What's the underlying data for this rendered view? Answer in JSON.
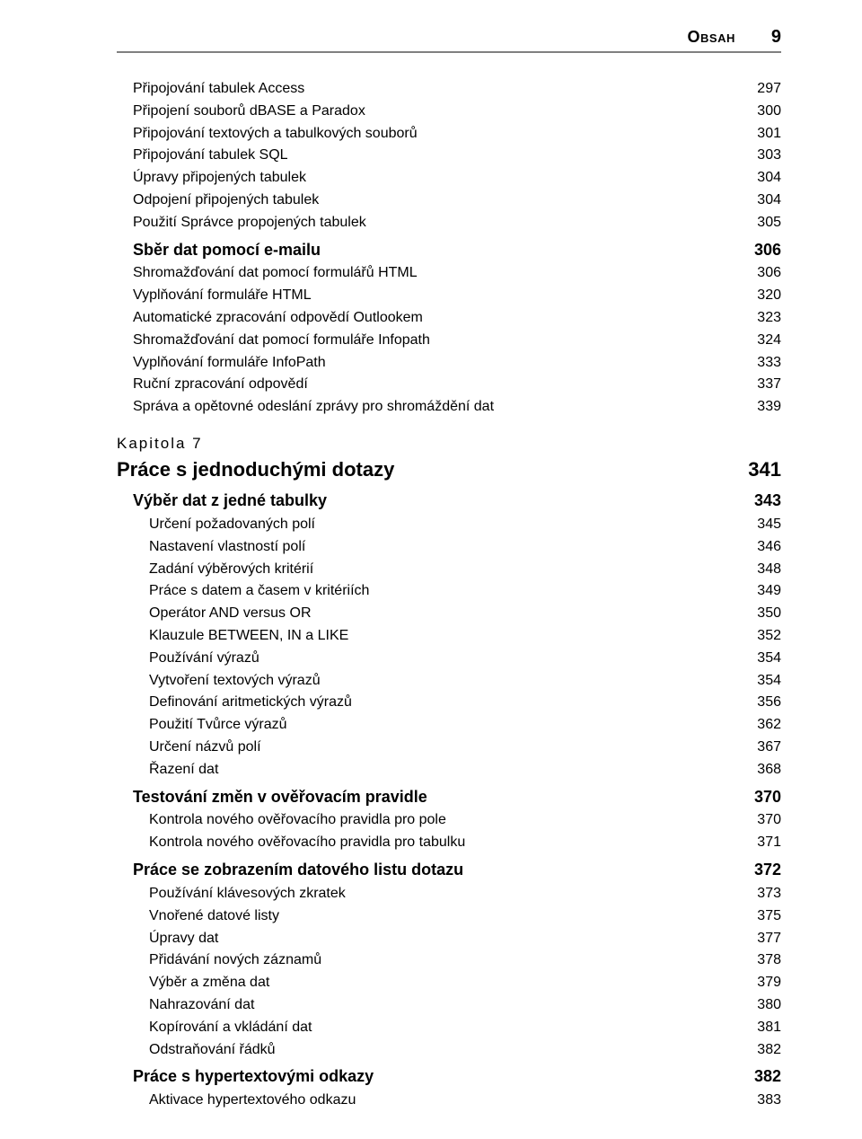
{
  "header": {
    "title": "Obsah",
    "page": "9"
  },
  "block1": {
    "items": [
      {
        "label": "Připojování tabulek Access",
        "page": "297"
      },
      {
        "label": "Připojení souborů dBASE a Paradox",
        "page": "300"
      },
      {
        "label": "Připojování textových a tabulkových souborů",
        "page": "301"
      },
      {
        "label": "Připojování tabulek SQL",
        "page": "303"
      },
      {
        "label": "Úpravy připojených tabulek",
        "page": "304"
      },
      {
        "label": "Odpojení připojených tabulek",
        "page": "304"
      },
      {
        "label": "Použití Správce propojených tabulek",
        "page": "305"
      }
    ],
    "section": {
      "label": "Sběr dat pomocí e-mailu",
      "page": "306"
    },
    "subitems": [
      {
        "label": "Shromažďování dat pomocí formulářů HTML",
        "page": "306"
      },
      {
        "label": "Vyplňování formuláře HTML",
        "page": "320"
      },
      {
        "label": "Automatické zpracování odpovědí Outlookem",
        "page": "323"
      },
      {
        "label": "Shromažďování dat pomocí formuláře Infopath",
        "page": "324"
      },
      {
        "label": "Vyplňování formuláře InfoPath",
        "page": "333"
      },
      {
        "label": "Ruční zpracování odpovědí",
        "page": "337"
      },
      {
        "label": "Správa a opětovné odeslání zprávy pro shromáždění dat",
        "page": "339"
      }
    ]
  },
  "chapter7": {
    "kapitola": "Kapitola 7",
    "title": {
      "label": "Práce s jednoduchými dotazy",
      "page": "341"
    },
    "sections": [
      {
        "heading": {
          "label": "Výběr dat z jedné tabulky",
          "page": "343"
        },
        "items": [
          {
            "label": "Určení požadovaných polí",
            "page": "345"
          },
          {
            "label": "Nastavení vlastností polí",
            "page": "346"
          },
          {
            "label": "Zadání výběrových kritérií",
            "page": "348"
          },
          {
            "label": "Práce s datem a časem v kritériích",
            "page": "349"
          },
          {
            "label": "Operátor AND versus OR",
            "page": "350"
          },
          {
            "label": "Klauzule BETWEEN, IN a LIKE",
            "page": "352"
          },
          {
            "label": "Používání výrazů",
            "page": "354"
          },
          {
            "label": "Vytvoření textových výrazů",
            "page": "354"
          },
          {
            "label": "Definování aritmetických výrazů",
            "page": "356"
          },
          {
            "label": "Použití Tvůrce výrazů",
            "page": "362"
          },
          {
            "label": "Určení názvů polí",
            "page": "367"
          },
          {
            "label": "Řazení dat",
            "page": "368"
          }
        ]
      },
      {
        "heading": {
          "label": "Testování změn v ověřovacím pravidle",
          "page": "370"
        },
        "items": [
          {
            "label": "Kontrola nového ověřovacího pravidla pro pole",
            "page": "370"
          },
          {
            "label": "Kontrola nového ověřovacího pravidla pro tabulku",
            "page": "371"
          }
        ]
      },
      {
        "heading": {
          "label": "Práce se zobrazením datového listu dotazu",
          "page": "372"
        },
        "items": [
          {
            "label": "Používání klávesových zkratek",
            "page": "373"
          },
          {
            "label": "Vnořené datové listy",
            "page": "375"
          },
          {
            "label": "Úpravy dat",
            "page": "377"
          },
          {
            "label": "Přidávání nových záznamů",
            "page": "378"
          },
          {
            "label": "Výběr a změna dat",
            "page": "379"
          },
          {
            "label": "Nahrazování dat",
            "page": "380"
          },
          {
            "label": "Kopírování a vkládání dat",
            "page": "381"
          },
          {
            "label": "Odstraňování řádků",
            "page": "382"
          }
        ]
      },
      {
        "heading": {
          "label": "Práce s hypertextovými odkazy",
          "page": "382"
        },
        "items": [
          {
            "label": "Aktivace hypertextového odkazu",
            "page": "383"
          }
        ]
      }
    ]
  }
}
